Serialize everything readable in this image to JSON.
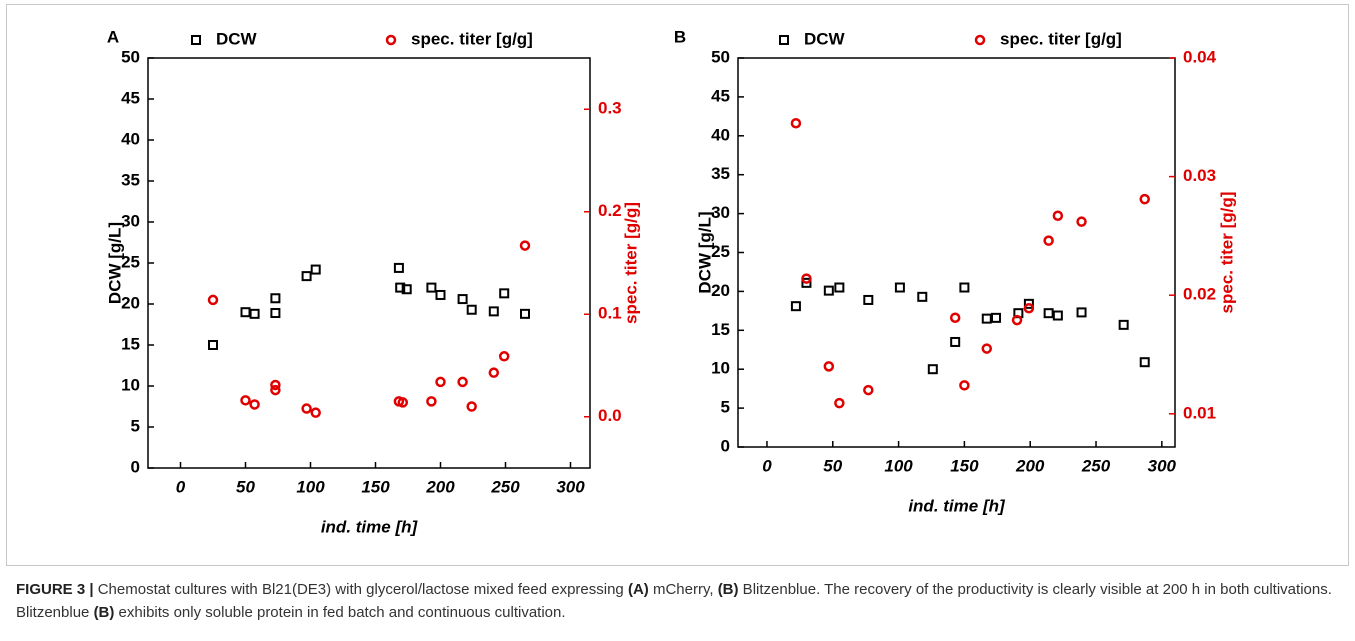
{
  "chart_data": [
    {
      "type": "scatter",
      "panel_label": "A",
      "xlabel": "ind. time [h]",
      "ylabel": "DCW [g/L]",
      "y2label": "spec. titer [g/g]",
      "xlim": [
        -25,
        315
      ],
      "xticks": [
        0,
        50,
        100,
        150,
        200,
        250,
        300
      ],
      "ylim": [
        0,
        50
      ],
      "yticks": [
        0,
        5,
        10,
        15,
        20,
        25,
        30,
        35,
        40,
        45,
        50
      ],
      "y2lim": [
        -0.05,
        0.35
      ],
      "y2ticks": [
        {
          "value": 0,
          "label": "0.0"
        },
        0.1,
        0.2,
        0.3
      ],
      "y2color": "#e00000",
      "series": [
        {
          "name": "DCW",
          "color": "#000000",
          "marker": "square",
          "axis": "y",
          "x": [
            25,
            50,
            57,
            73,
            73,
            97,
            104,
            168,
            169,
            174,
            193,
            200,
            217,
            224,
            241,
            249,
            265
          ],
          "values": [
            15,
            19,
            18.8,
            18.9,
            20.7,
            23.4,
            24.2,
            24.4,
            22,
            21.8,
            22,
            21.1,
            20.6,
            19.3,
            19.1,
            21.3,
            18.8
          ]
        },
        {
          "name": "spec. titer [g/g]",
          "color": "#e00000",
          "marker": "circle",
          "axis": "y2",
          "x": [
            25,
            50,
            57,
            73,
            73,
            97,
            104,
            168,
            171,
            193,
            200,
            217,
            224,
            241,
            249,
            265
          ],
          "values": [
            0.114,
            0.016,
            0.012,
            0.031,
            0.026,
            0.008,
            0.004,
            0.015,
            0.014,
            0.015,
            0.034,
            0.034,
            0.01,
            0.043,
            0.059,
            0.167
          ]
        }
      ]
    },
    {
      "type": "scatter",
      "panel_label": "B",
      "xlabel": "ind. time [h]",
      "ylabel": "DCW [g/L]",
      "y2label": "spec. titer [g/g]",
      "xlim": [
        -22,
        310
      ],
      "xticks": [
        0,
        50,
        100,
        150,
        200,
        250,
        300
      ],
      "ylim": [
        0,
        50
      ],
      "yticks": [
        0,
        5,
        10,
        15,
        20,
        25,
        30,
        35,
        40,
        45,
        50
      ],
      "y2lim": [
        0.0072,
        0.04
      ],
      "y2ticks": [
        0.01,
        0.02,
        0.03,
        0.04
      ],
      "y2color": "#e00000",
      "series": [
        {
          "name": "DCW",
          "color": "#000000",
          "marker": "square",
          "axis": "y",
          "x": [
            22,
            30,
            47,
            55,
            77,
            101,
            118,
            126,
            143,
            150,
            167,
            174,
            191,
            199,
            214,
            221,
            239,
            271,
            287
          ],
          "values": [
            18.1,
            21.1,
            20.1,
            20.5,
            18.9,
            20.5,
            19.3,
            10,
            13.5,
            20.5,
            16.5,
            16.6,
            17.2,
            18.4,
            17.2,
            16.9,
            17.3,
            15.7,
            10.9
          ]
        },
        {
          "name": "spec. titer [g/g]",
          "color": "#e00000",
          "marker": "circle",
          "axis": "y2",
          "x": [
            22,
            30,
            47,
            55,
            77,
            143,
            150,
            167,
            190,
            199,
            214,
            221,
            239,
            287
          ],
          "values": [
            0.0345,
            0.0214,
            0.014,
            0.0109,
            0.012,
            0.0181,
            0.0124,
            0.0155,
            0.0179,
            0.0189,
            0.0246,
            0.0267,
            0.0262,
            0.0281
          ]
        }
      ]
    }
  ],
  "caption": {
    "segments": [
      {
        "text": "FIGURE 3 |",
        "bold": true
      },
      {
        "text": " Chemostat cultures with Bl21(DE3) with glycerol/lactose mixed feed expressing ",
        "bold": false
      },
      {
        "text": "(A)",
        "bold": true
      },
      {
        "text": " mCherry, ",
        "bold": false
      },
      {
        "text": "(B)",
        "bold": true
      },
      {
        "text": " Blitzenblue. The recovery of the productivity is clearly visible at 200 h in both cultivations. Blitzenblue ",
        "bold": false
      },
      {
        "text": "(B)",
        "bold": true
      },
      {
        "text": " exhibits only soluble protein in fed batch and continuous cultivation.",
        "bold": false
      }
    ]
  }
}
